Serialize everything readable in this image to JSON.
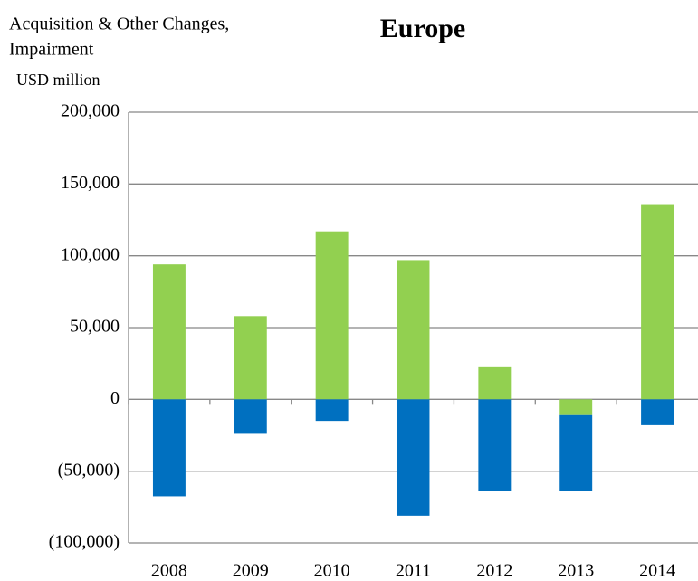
{
  "chart_data": {
    "type": "stacked-bar",
    "title": "Europe",
    "annotation_lines": [
      "Acquisition & Other Changes,",
      "Impairment"
    ],
    "y_label": "USD million",
    "categories": [
      "2008",
      "2009",
      "2010",
      "2011",
      "2012",
      "2013",
      "2014"
    ],
    "series": [
      {
        "color": "#92d050",
        "values": [
          94000,
          58000,
          117000,
          97000,
          23000,
          -11000,
          136000
        ]
      },
      {
        "color": "#0070c0",
        "values": [
          -67500,
          -24000,
          -15000,
          -81000,
          -64000,
          -53000,
          -18000
        ]
      }
    ],
    "ylim": [
      -100000,
      200000
    ],
    "yticks": [
      {
        "value": -100000,
        "label": "(100,000)"
      },
      {
        "value": -50000,
        "label": "(50,000)"
      },
      0,
      {
        "value": 50000,
        "label": "50,000"
      },
      {
        "value": 100000,
        "label": "100,000"
      },
      {
        "value": 150000,
        "label": "150,000"
      },
      {
        "value": 200000,
        "label": "200,000"
      }
    ],
    "negative_tick_color": "#ff0000",
    "grid": true
  }
}
